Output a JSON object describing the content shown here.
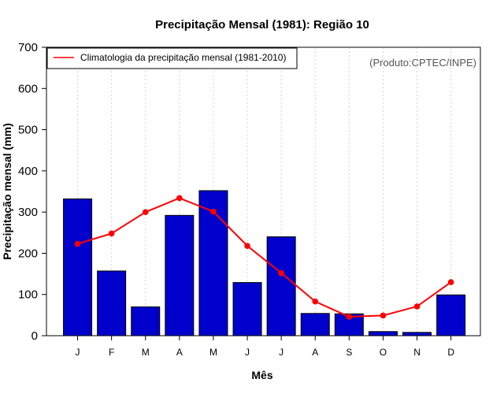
{
  "chart_data": {
    "type": "bar",
    "title": "Precipitação Mensal (1981): Região 10",
    "xlabel": "Mês",
    "ylabel": "Precipitação mensal (mm)",
    "ylim": [
      0,
      700
    ],
    "yticks": [
      0,
      100,
      200,
      300,
      400,
      500,
      600,
      700
    ],
    "categories": [
      "J",
      "F",
      "M",
      "A",
      "M",
      "J",
      "J",
      "A",
      "S",
      "O",
      "N",
      "D"
    ],
    "series": [
      {
        "name": "Precipitação mensal (1981)",
        "kind": "bar",
        "color": "#0000cc",
        "values": [
          332,
          157,
          70,
          292,
          352,
          129,
          240,
          54,
          53,
          10,
          8,
          99
        ]
      },
      {
        "name": "Climatologia da precipitação mensal (1981-2010)",
        "kind": "line",
        "color": "#ff0000",
        "values": [
          223,
          248,
          300,
          334,
          301,
          218,
          152,
          83,
          46,
          49,
          71,
          130
        ]
      }
    ],
    "legend": {
      "position": "top-left",
      "label": "Climatologia da precipitação mensal (1981-2010)"
    },
    "credit": "(Produto:CPTEC/INPE)",
    "grid": "vertical-dotted"
  }
}
